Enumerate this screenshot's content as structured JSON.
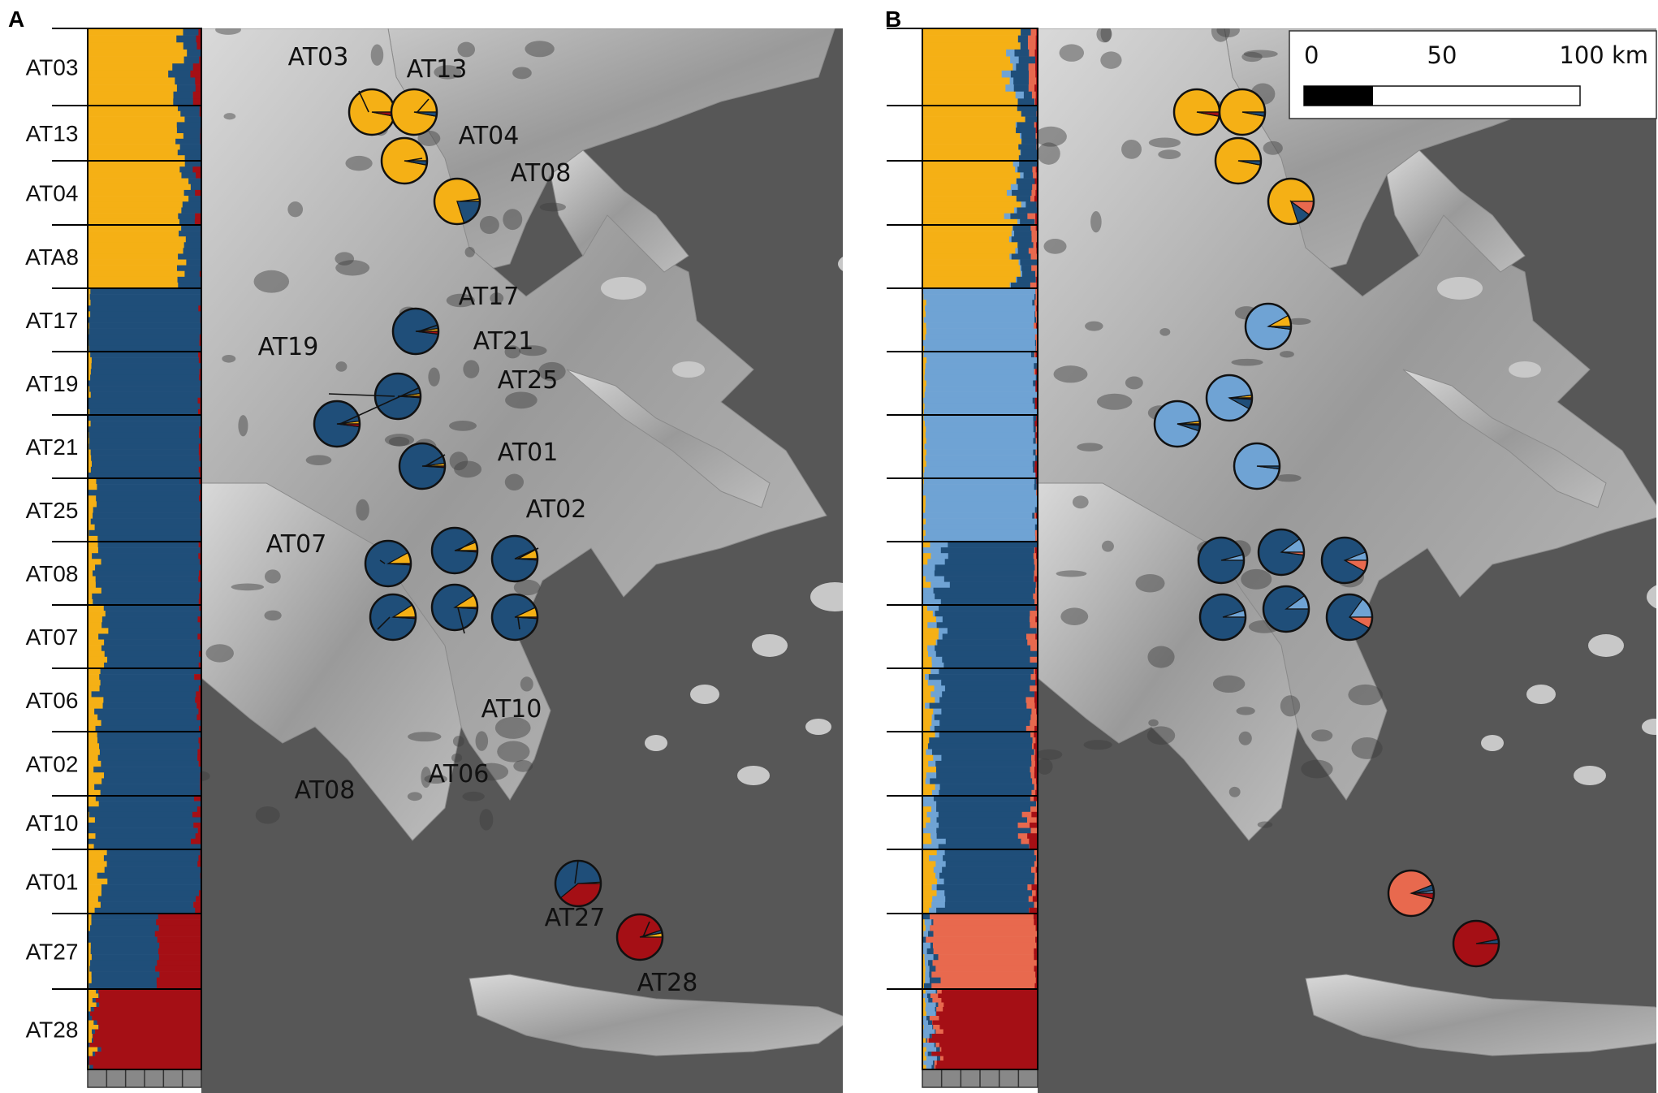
{
  "panels": [
    {
      "letter": "A"
    },
    {
      "letter": "B"
    }
  ],
  "scale_bar": {
    "labels": [
      "0",
      "50",
      "100 km"
    ],
    "filled_fraction": 0.5
  },
  "chart_data": [
    {
      "type": "structure-barplot-with-map-pies",
      "panel": "A",
      "K": 3,
      "cluster_colors": [
        "#f5b015",
        "#1f4e79",
        "#a50f15"
      ],
      "populations": [
        {
          "label": "AT03",
          "n": 11,
          "q": [
            0.78,
            0.17,
            0.05
          ]
        },
        {
          "label": "AT13",
          "n": 10,
          "q": [
            0.83,
            0.17,
            0.0
          ]
        },
        {
          "label": "AT04",
          "n": 11,
          "q": [
            0.82,
            0.15,
            0.03
          ]
        },
        {
          "label": "ATA8",
          "n": 11,
          "q": [
            0.82,
            0.18,
            0.0
          ]
        },
        {
          "label": "AT17",
          "n": 11,
          "q": [
            0.01,
            0.98,
            0.01
          ]
        },
        {
          "label": "AT19",
          "n": 11,
          "q": [
            0.02,
            0.96,
            0.02
          ]
        },
        {
          "label": "AT21",
          "n": 11,
          "q": [
            0.02,
            0.97,
            0.01
          ]
        },
        {
          "label": "AT25",
          "n": 11,
          "q": [
            0.04,
            0.95,
            0.01
          ]
        },
        {
          "label": "AT08",
          "n": 11,
          "q": [
            0.08,
            0.9,
            0.02
          ]
        },
        {
          "label": "AT07",
          "n": 11,
          "q": [
            0.12,
            0.86,
            0.02
          ]
        },
        {
          "label": "AT06",
          "n": 11,
          "q": [
            0.09,
            0.88,
            0.03
          ]
        },
        {
          "label": "AT02",
          "n": 11,
          "q": [
            0.1,
            0.88,
            0.02
          ]
        },
        {
          "label": "AT10",
          "n": 10,
          "q": [
            0.04,
            0.92,
            0.04
          ]
        },
        {
          "label": "AT01",
          "n": 11,
          "q": [
            0.12,
            0.85,
            0.03
          ]
        },
        {
          "label": "AT27",
          "n": 13,
          "q": [
            0.02,
            0.6,
            0.38
          ]
        },
        {
          "label": "AT28",
          "n": 18,
          "q": [
            0.05,
            0.02,
            0.93
          ]
        }
      ],
      "map_pies": [
        {
          "label": "AT03",
          "q": [
            0.97,
            0.0,
            0.03
          ]
        },
        {
          "label": "AT13",
          "q": [
            0.97,
            0.03,
            0.0
          ]
        },
        {
          "label": "AT04",
          "q": [
            0.97,
            0.03,
            0.0
          ]
        },
        {
          "label": "AT08",
          "q": [
            0.8,
            0.2,
            0.0
          ]
        },
        {
          "label": "AT17",
          "q": [
            0.02,
            0.96,
            0.02
          ]
        },
        {
          "label": "AT19",
          "q": [
            0.02,
            0.97,
            0.01
          ]
        },
        {
          "label": "AT21",
          "q": [
            0.02,
            0.96,
            0.02
          ]
        },
        {
          "label": "AT25",
          "q": [
            0.02,
            0.97,
            0.01
          ]
        },
        {
          "label": "AT01",
          "q": [
            0.06,
            0.93,
            0.01
          ]
        },
        {
          "label": "AT02",
          "q": [
            0.07,
            0.92,
            0.01
          ]
        },
        {
          "label": "AT07",
          "q": [
            0.08,
            0.91,
            0.01
          ]
        },
        {
          "label": "AT08",
          "q": [
            0.09,
            0.9,
            0.01
          ]
        },
        {
          "label": "AT06",
          "q": [
            0.09,
            0.9,
            0.01
          ]
        },
        {
          "label": "AT10",
          "q": [
            0.07,
            0.92,
            0.01
          ]
        },
        {
          "label": "AT27",
          "q": [
            0.01,
            0.6,
            0.39
          ]
        },
        {
          "label": "AT28",
          "q": [
            0.03,
            0.02,
            0.95
          ]
        }
      ]
    },
    {
      "type": "structure-barplot-with-map-pies",
      "panel": "B",
      "K": 5,
      "cluster_colors": [
        "#f5b015",
        "#6fa3d4",
        "#1f4e79",
        "#e8694e",
        "#a50f15"
      ],
      "populations": [
        {
          "n": 11,
          "q": [
            0.8,
            0.03,
            0.12,
            0.03,
            0.02
          ]
        },
        {
          "n": 10,
          "q": [
            0.84,
            0.0,
            0.16,
            0.0,
            0.0
          ]
        },
        {
          "n": 11,
          "q": [
            0.78,
            0.05,
            0.12,
            0.04,
            0.01
          ]
        },
        {
          "n": 11,
          "q": [
            0.82,
            0.01,
            0.13,
            0.04,
            0.0
          ]
        },
        {
          "n": 11,
          "q": [
            0.02,
            0.96,
            0.01,
            0.01,
            0.0
          ]
        },
        {
          "n": 11,
          "q": [
            0.02,
            0.96,
            0.01,
            0.0,
            0.01
          ]
        },
        {
          "n": 11,
          "q": [
            0.02,
            0.96,
            0.01,
            0.0,
            0.01
          ]
        },
        {
          "n": 11,
          "q": [
            0.02,
            0.96,
            0.01,
            0.01,
            0.0
          ]
        },
        {
          "n": 11,
          "q": [
            0.03,
            0.12,
            0.82,
            0.02,
            0.01
          ]
        },
        {
          "n": 11,
          "q": [
            0.1,
            0.06,
            0.8,
            0.03,
            0.01
          ]
        },
        {
          "n": 11,
          "q": [
            0.06,
            0.06,
            0.83,
            0.03,
            0.02
          ]
        },
        {
          "n": 11,
          "q": [
            0.07,
            0.04,
            0.85,
            0.02,
            0.02
          ]
        },
        {
          "n": 10,
          "q": [
            0.03,
            0.1,
            0.77,
            0.06,
            0.04
          ]
        },
        {
          "n": 11,
          "q": [
            0.1,
            0.08,
            0.77,
            0.02,
            0.03
          ]
        },
        {
          "n": 13,
          "q": [
            0.01,
            0.04,
            0.05,
            0.88,
            0.02
          ]
        },
        {
          "n": 18,
          "q": [
            0.02,
            0.06,
            0.02,
            0.03,
            0.87
          ]
        }
      ],
      "map_pies": [
        {
          "q": [
            0.97,
            0.0,
            0.0,
            0.0,
            0.03
          ]
        },
        {
          "q": [
            0.97,
            0.0,
            0.03,
            0.0,
            0.0
          ]
        },
        {
          "q": [
            0.97,
            0.0,
            0.03,
            0.0,
            0.0
          ]
        },
        {
          "q": [
            0.8,
            0.0,
            0.1,
            0.1,
            0.0
          ]
        },
        {
          "q": [
            0.08,
            0.9,
            0.02,
            0.0,
            0.0
          ]
        },
        {
          "q": [
            0.02,
            0.9,
            0.07,
            0.0,
            0.01
          ]
        },
        {
          "q": [
            0.02,
            0.93,
            0.04,
            0.0,
            0.01
          ]
        },
        {
          "q": [
            0.0,
            0.98,
            0.02,
            0.0,
            0.0
          ]
        },
        {
          "q": [
            0.0,
            0.04,
            0.96,
            0.0,
            0.0
          ]
        },
        {
          "q": [
            0.0,
            0.1,
            0.88,
            0.02,
            0.0
          ]
        },
        {
          "q": [
            0.0,
            0.06,
            0.86,
            0.08,
            0.0
          ]
        },
        {
          "q": [
            0.0,
            0.05,
            0.95,
            0.0,
            0.0
          ]
        },
        {
          "q": [
            0.0,
            0.1,
            0.9,
            0.0,
            0.0
          ]
        },
        {
          "q": [
            0.0,
            0.15,
            0.77,
            0.08,
            0.0
          ]
        },
        {
          "q": [
            0.0,
            0.02,
            0.04,
            0.9,
            0.04
          ]
        },
        {
          "q": [
            0.0,
            0.0,
            0.03,
            0.0,
            0.97
          ]
        }
      ]
    }
  ]
}
